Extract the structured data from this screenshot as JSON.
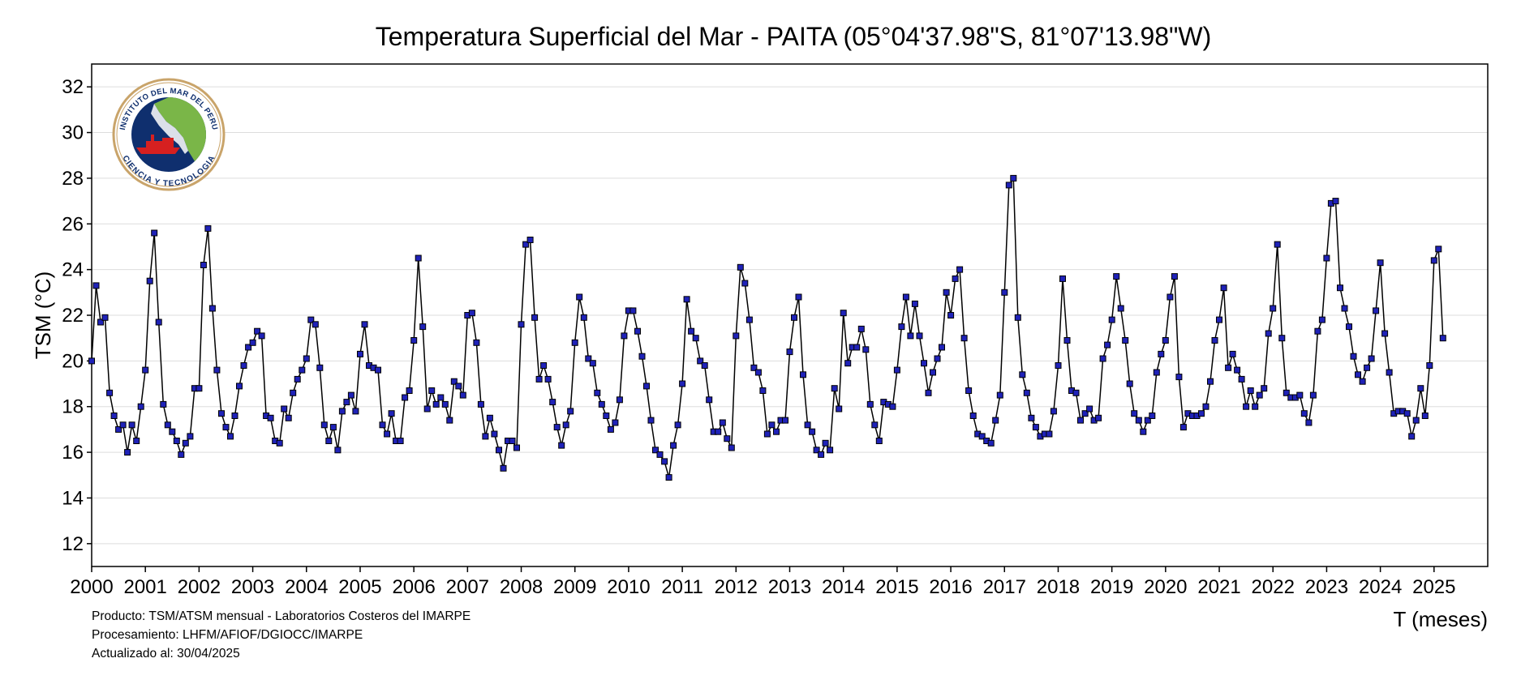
{
  "chart_data": {
    "type": "line",
    "title": "Temperatura Superficial del Mar - PAITA (05°04'37.98\"S, 81°07'13.98\"W)",
    "xlabel": "T (meses)",
    "ylabel": "TSM (°C)",
    "ylim": [
      11,
      33
    ],
    "xlim": [
      2000.0,
      2026.0
    ],
    "y_ticks": [
      12,
      14,
      16,
      18,
      20,
      22,
      24,
      26,
      28,
      30,
      32
    ],
    "x_ticks": [
      2000,
      2001,
      2002,
      2003,
      2004,
      2005,
      2006,
      2007,
      2008,
      2009,
      2010,
      2011,
      2012,
      2013,
      2014,
      2015,
      2016,
      2017,
      2018,
      2019,
      2020,
      2021,
      2022,
      2023,
      2024,
      2025
    ],
    "grid": "horizontal",
    "series": [
      {
        "x_start": "2000-01",
        "frequency": "monthly",
        "values": [
          20.0,
          23.3,
          21.7,
          21.9,
          18.6,
          17.6,
          17.0,
          17.2,
          16.0,
          17.2,
          16.5,
          18.0,
          19.6,
          23.5,
          25.6,
          21.7,
          18.1,
          17.2,
          16.9,
          16.5,
          15.9,
          16.4,
          16.7,
          18.8,
          18.8,
          24.2,
          25.8,
          22.3,
          19.6,
          17.7,
          17.1,
          16.7,
          17.6,
          18.9,
          19.8,
          20.6,
          20.8,
          21.3,
          21.1,
          17.6,
          17.5,
          16.5,
          16.4,
          17.9,
          17.5,
          18.6,
          19.2,
          19.6,
          20.1,
          21.8,
          21.6,
          19.7,
          17.2,
          16.5,
          17.1,
          16.1,
          17.8,
          18.2,
          18.5,
          17.8,
          20.3,
          21.6,
          19.8,
          19.7,
          19.6,
          17.2,
          16.8,
          17.7,
          16.5,
          16.5,
          18.4,
          18.7,
          20.9,
          24.5,
          21.5,
          17.9,
          18.7,
          18.1,
          18.4,
          18.1,
          17.4,
          19.1,
          18.9,
          18.5,
          22.0,
          22.1,
          20.8,
          18.1,
          16.7,
          17.5,
          16.8,
          16.1,
          15.3,
          16.5,
          16.5,
          16.2,
          21.6,
          25.1,
          25.3,
          21.9,
          19.2,
          19.8,
          19.2,
          18.2,
          17.1,
          16.3,
          17.2,
          17.8,
          20.8,
          22.8,
          21.9,
          20.1,
          19.9,
          18.6,
          18.1,
          17.6,
          17.0,
          17.3,
          18.3,
          21.1,
          22.2,
          22.2,
          21.3,
          20.2,
          18.9,
          17.4,
          16.1,
          15.9,
          15.6,
          14.9,
          16.3,
          17.2,
          19.0,
          22.7,
          21.3,
          21.0,
          20.0,
          19.8,
          18.3,
          16.9,
          16.9,
          17.3,
          16.6,
          16.2,
          21.1,
          24.1,
          23.4,
          21.8,
          19.7,
          19.5,
          18.7,
          16.8,
          17.2,
          16.9,
          17.4,
          17.4,
          20.4,
          21.9,
          22.8,
          19.4,
          17.2,
          16.9,
          16.1,
          15.9,
          16.4,
          16.1,
          18.8,
          17.9,
          22.1,
          19.9,
          20.6,
          20.6,
          21.4,
          20.5,
          18.1,
          17.2,
          16.5,
          18.2,
          18.1,
          18.0,
          19.6,
          21.5,
          22.8,
          21.1,
          22.5,
          21.1,
          19.9,
          18.6,
          19.5,
          20.1,
          20.6,
          23.0,
          22.0,
          23.6,
          24.0,
          21.0,
          18.7,
          17.6,
          16.8,
          16.7,
          16.5,
          16.4,
          17.4,
          18.5,
          23.0,
          27.7,
          28.0,
          21.9,
          19.4,
          18.6,
          17.5,
          17.1,
          16.7,
          16.8,
          16.8,
          17.8,
          19.8,
          23.6,
          20.9,
          18.7,
          18.6,
          17.4,
          17.7,
          17.9,
          17.4,
          17.5,
          20.1,
          20.7,
          21.8,
          23.7,
          22.3,
          20.9,
          19.0,
          17.7,
          17.4,
          16.9,
          17.4,
          17.6,
          19.5,
          20.3,
          20.9,
          22.8,
          23.7,
          19.3,
          17.1,
          17.7,
          17.6,
          17.6,
          17.7,
          18.0,
          19.1,
          20.9,
          21.8,
          23.2,
          19.7,
          20.3,
          19.6,
          19.2,
          18.0,
          18.7,
          18.0,
          18.5,
          18.8,
          21.2,
          22.3,
          25.1,
          21.0,
          18.6,
          18.4,
          18.4,
          18.5,
          17.7,
          17.3,
          18.5,
          21.3,
          21.8,
          24.5,
          26.9,
          27.0,
          23.2,
          22.3,
          21.5,
          20.2,
          19.4,
          19.1,
          19.7,
          20.1,
          22.2,
          24.3,
          21.2,
          19.5,
          17.7,
          17.8,
          17.8,
          17.7,
          16.7,
          17.4,
          18.8,
          17.6,
          19.8,
          24.4,
          24.9,
          21.0
        ]
      }
    ]
  },
  "logo": {
    "text_top": "INSTITUTO DEL MAR DEL PERU",
    "text_bottom": "CIENCIA Y TECNOLOGIA",
    "colors": {
      "ring": "#c9a46a",
      "ocean": "#0f2f6e",
      "land": "#7ab648",
      "ship": "#d62020"
    }
  },
  "footer": {
    "line1": "Producto: TSM/ATSM mensual - Laboratorios Costeros del IMARPE",
    "line2": "Procesamiento: LHFM/AFIOF/DGIOCC/IMARPE",
    "line3": "Actualizado al: 30/04/2025"
  },
  "colors": {
    "line": "#000000",
    "marker_fill": "#1f22b8",
    "marker_edge": "#000000",
    "grid": "#dddddd"
  }
}
